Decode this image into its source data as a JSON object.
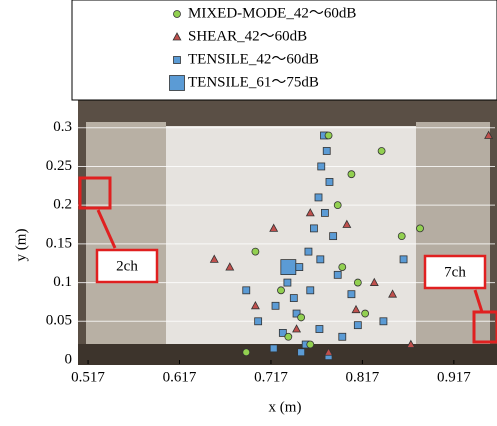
{
  "chart_data": {
    "type": "scatter",
    "xlabel": "x (m)",
    "ylabel": "y (m)",
    "xlim": [
      0.506,
      0.962
    ],
    "ylim": [
      0,
      0.31
    ],
    "xticks": [
      0.517,
      0.617,
      0.717,
      0.817,
      0.917
    ],
    "yticks": [
      0,
      0.05,
      0.1,
      0.15,
      0.2,
      0.25,
      0.3
    ],
    "grid": true,
    "annotations": [
      "2ch",
      "7ch"
    ],
    "series": [
      {
        "name": "MIXED-MODE_42～60dB",
        "color": "#92d050",
        "marker": "circle",
        "x": [
          0.78,
          0.805,
          0.838,
          0.88,
          0.7,
          0.728,
          0.76,
          0.795,
          0.812,
          0.69,
          0.75,
          0.82,
          0.86,
          0.79,
          0.736
        ],
        "values": [
          0.29,
          0.24,
          0.27,
          0.17,
          0.14,
          0.09,
          0.02,
          0.12,
          0.1,
          0.01,
          0.055,
          0.06,
          0.16,
          0.2,
          0.03
        ]
      },
      {
        "name": "SHEAR_42～60dB",
        "color": "#c0504d",
        "marker": "triangle",
        "x": [
          0.655,
          0.672,
          0.76,
          0.72,
          0.8,
          0.83,
          0.7,
          0.81,
          0.85,
          0.745,
          0.78,
          0.955,
          0.87
        ],
        "values": [
          0.13,
          0.12,
          0.19,
          0.17,
          0.175,
          0.1,
          0.07,
          0.065,
          0.085,
          0.04,
          0.01,
          0.29,
          0.02
        ]
      },
      {
        "name": "TENSILE_42～60dB",
        "color": "#5b9bd5",
        "marker": "square",
        "x": [
          0.775,
          0.778,
          0.772,
          0.781,
          0.769,
          0.776,
          0.764,
          0.785,
          0.758,
          0.771,
          0.748,
          0.79,
          0.735,
          0.76,
          0.742,
          0.805,
          0.722,
          0.745,
          0.703,
          0.812,
          0.77,
          0.73,
          0.755,
          0.795,
          0.84,
          0.69,
          0.75,
          0.78,
          0.72,
          0.862
        ],
        "values": [
          0.29,
          0.27,
          0.25,
          0.23,
          0.21,
          0.19,
          0.17,
          0.16,
          0.14,
          0.13,
          0.12,
          0.11,
          0.1,
          0.09,
          0.08,
          0.085,
          0.07,
          0.06,
          0.05,
          0.045,
          0.04,
          0.035,
          0.02,
          0.03,
          0.05,
          0.09,
          0.01,
          0.005,
          0.015,
          0.13
        ]
      },
      {
        "name": "TENSILE_61～75dB",
        "color": "#5b9bd5",
        "marker": "bigsquare",
        "x": [
          0.736
        ],
        "values": [
          0.12
        ]
      }
    ]
  }
}
